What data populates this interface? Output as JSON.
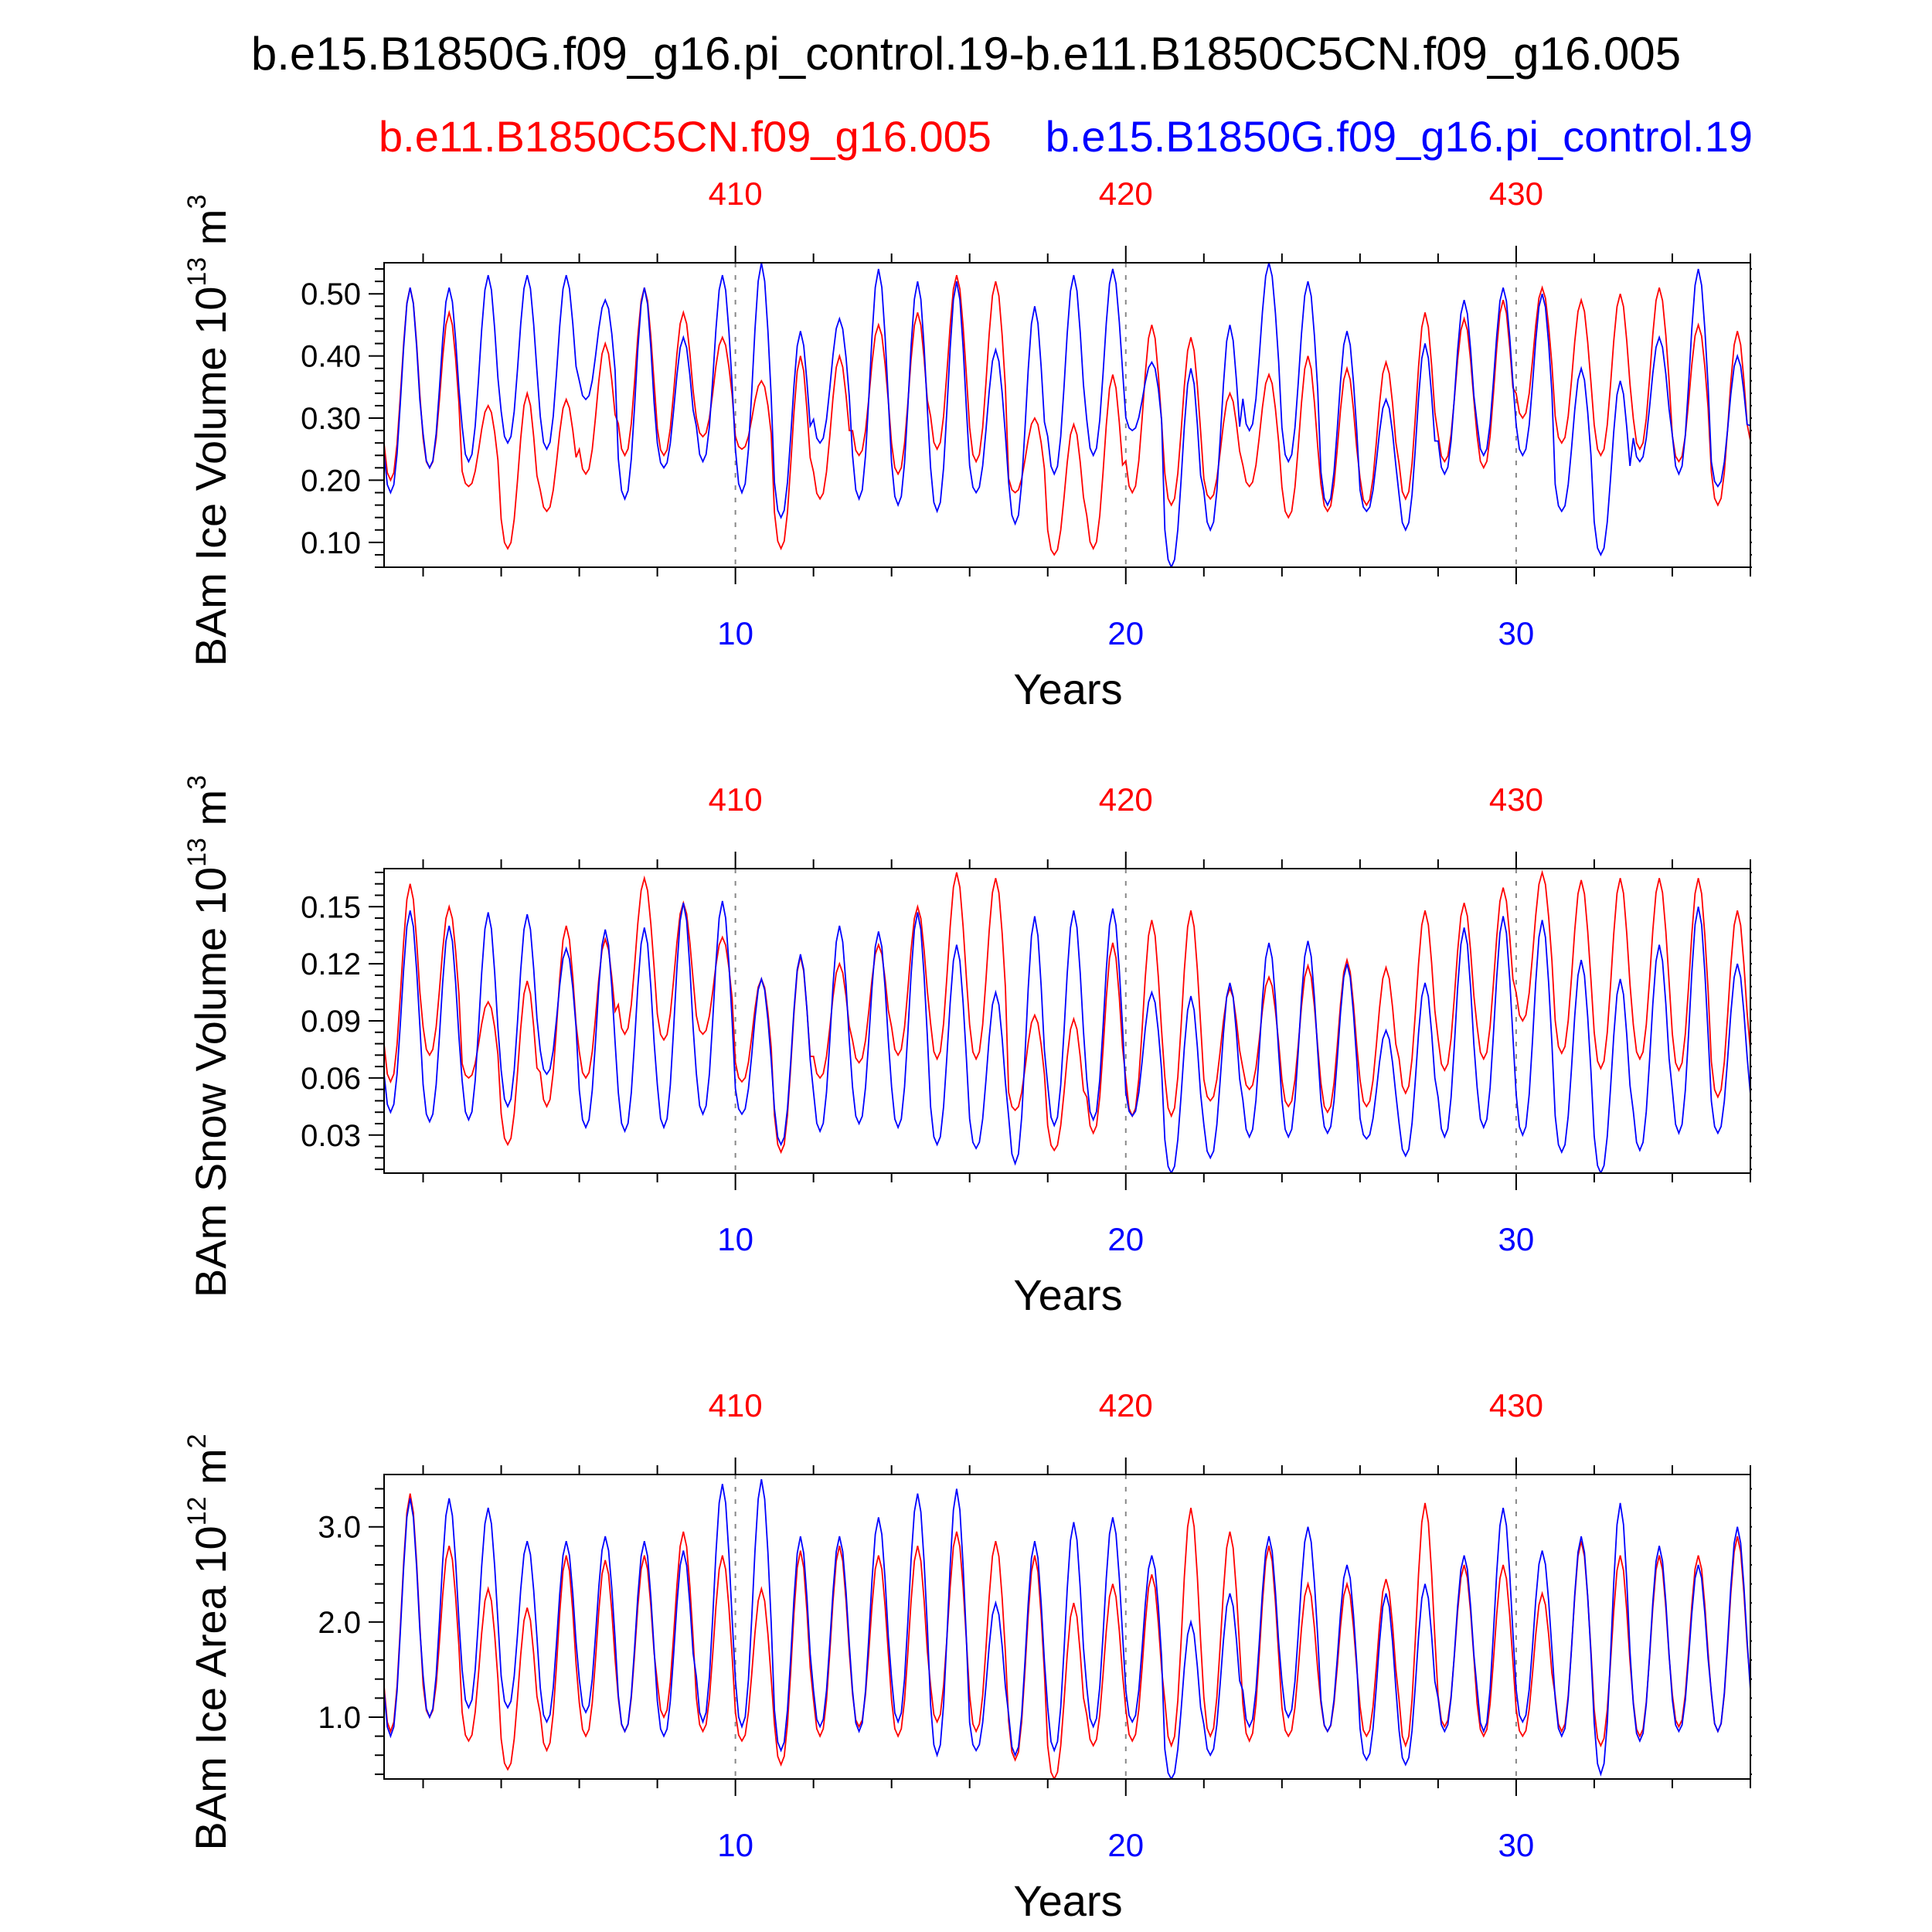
{
  "figure": {
    "title": "b.e15.B1850G.f09_g16.pi_control.19-b.e11.B1850C5CN.f09_g16.005",
    "legend": {
      "red_label": "b.e11.B1850C5CN.f09_g16.005",
      "blue_label": "b.e15.B1850G.f09_g16.pi_control.19"
    },
    "colors": {
      "series_a": "#ff0000",
      "series_b": "#0000ff",
      "frame": "#000000"
    }
  },
  "chart_data": [
    {
      "type": "line",
      "ylabel": "BAm Ice Volume 10^13 m^3",
      "ylabel_base": "BAm Ice Volume 10",
      "ylabel_exp": "13",
      "ylabel_unit": "m",
      "ylabel_unit_exp": "3",
      "xlabel": "Years",
      "xlim": [
        1,
        36
      ],
      "ylim": [
        0.06,
        0.55
      ],
      "yticks": [
        0.1,
        0.2,
        0.3,
        0.4,
        0.5
      ],
      "yticklabels": [
        "0.10",
        "0.20",
        "0.30",
        "0.40",
        "0.50"
      ],
      "bottom_xticks": [
        10,
        20,
        30
      ],
      "bottom_xticklabels": [
        "10",
        "20",
        "30"
      ],
      "top_xticklabels": [
        "410",
        "420",
        "430"
      ],
      "series": [
        {
          "name": "b.e11.B1850C5CN.f09_g16.005",
          "color": "#ff0000",
          "annual_max": [
            0.51,
            0.47,
            0.32,
            0.34,
            0.33,
            0.42,
            0.51,
            0.47,
            0.43,
            0.36,
            0.4,
            0.4,
            0.45,
            0.47,
            0.53,
            0.52,
            0.3,
            0.29,
            0.37,
            0.45,
            0.43,
            0.34,
            0.37,
            0.4,
            0.38,
            0.39,
            0.47,
            0.46,
            0.49,
            0.51,
            0.49,
            0.5,
            0.51,
            0.45,
            0.44,
            0.45
          ],
          "annual_min": [
            0.2,
            0.22,
            0.19,
            0.09,
            0.15,
            0.21,
            0.24,
            0.24,
            0.27,
            0.25,
            0.09,
            0.17,
            0.24,
            0.21,
            0.25,
            0.23,
            0.18,
            0.08,
            0.09,
            0.18,
            0.16,
            0.17,
            0.19,
            0.14,
            0.15,
            0.16,
            0.17,
            0.23,
            0.22,
            0.3,
            0.26,
            0.24,
            0.25,
            0.23,
            0.16,
            0.22
          ]
        },
        {
          "name": "b.e15.B1850G.f09_g16.pi_control.19",
          "color": "#0000ff",
          "annual_max": [
            0.51,
            0.51,
            0.53,
            0.53,
            0.53,
            0.49,
            0.51,
            0.43,
            0.53,
            0.55,
            0.44,
            0.46,
            0.54,
            0.52,
            0.52,
            0.41,
            0.48,
            0.53,
            0.54,
            0.39,
            0.38,
            0.45,
            0.55,
            0.52,
            0.44,
            0.33,
            0.42,
            0.49,
            0.51,
            0.5,
            0.38,
            0.36,
            0.43,
            0.54,
            0.4,
            0.45
          ],
          "annual_min": [
            0.18,
            0.22,
            0.23,
            0.26,
            0.25,
            0.33,
            0.17,
            0.22,
            0.23,
            0.18,
            0.14,
            0.26,
            0.17,
            0.16,
            0.15,
            0.18,
            0.13,
            0.21,
            0.24,
            0.28,
            0.06,
            0.12,
            0.28,
            0.23,
            0.16,
            0.15,
            0.12,
            0.21,
            0.24,
            0.24,
            0.15,
            0.08,
            0.23,
            0.21,
            0.19,
            0.25
          ]
        }
      ]
    },
    {
      "type": "line",
      "ylabel": "BAm Snow Volume 10^13 m^3",
      "ylabel_base": "BAm Snow Volume 10",
      "ylabel_exp": "13",
      "ylabel_unit": "m",
      "ylabel_unit_exp": "3",
      "xlabel": "Years",
      "xlim": [
        1,
        36
      ],
      "ylim": [
        0.01,
        0.17
      ],
      "yticks": [
        0.03,
        0.06,
        0.09,
        0.12,
        0.15
      ],
      "yticklabels": [
        "0.03",
        "0.06",
        "0.09",
        "0.12",
        "0.15"
      ],
      "bottom_xticks": [
        10,
        20,
        30
      ],
      "bottom_xticklabels": [
        "10",
        "20",
        "30"
      ],
      "top_xticklabels": [
        "410",
        "420",
        "430"
      ],
      "series": [
        {
          "name": "b.e11.B1850C5CN.f09_g16.005",
          "color": "#ff0000",
          "annual_max": [
            0.162,
            0.15,
            0.1,
            0.111,
            0.14,
            0.133,
            0.165,
            0.152,
            0.134,
            0.112,
            0.124,
            0.12,
            0.13,
            0.15,
            0.168,
            0.165,
            0.093,
            0.091,
            0.131,
            0.143,
            0.148,
            0.107,
            0.113,
            0.119,
            0.122,
            0.118,
            0.148,
            0.152,
            0.16,
            0.168,
            0.164,
            0.165,
            0.165,
            0.165,
            0.148,
            0.137
          ],
          "annual_min": [
            0.058,
            0.072,
            0.06,
            0.025,
            0.045,
            0.06,
            0.083,
            0.08,
            0.083,
            0.058,
            0.021,
            0.06,
            0.068,
            0.072,
            0.07,
            0.07,
            0.043,
            0.022,
            0.031,
            0.04,
            0.04,
            0.048,
            0.054,
            0.045,
            0.042,
            0.045,
            0.052,
            0.064,
            0.07,
            0.09,
            0.073,
            0.065,
            0.07,
            0.064,
            0.05,
            0.06
          ]
        },
        {
          "name": "b.e15.B1850G.f09_g16.pi_control.19",
          "color": "#0000ff",
          "annual_max": [
            0.148,
            0.14,
            0.147,
            0.146,
            0.128,
            0.138,
            0.139,
            0.152,
            0.153,
            0.112,
            0.125,
            0.14,
            0.137,
            0.147,
            0.13,
            0.105,
            0.145,
            0.148,
            0.149,
            0.105,
            0.103,
            0.11,
            0.131,
            0.132,
            0.12,
            0.085,
            0.11,
            0.139,
            0.145,
            0.143,
            0.122,
            0.112,
            0.13,
            0.15,
            0.12,
            0.1
          ],
          "annual_min": [
            0.042,
            0.037,
            0.038,
            0.045,
            0.062,
            0.034,
            0.032,
            0.034,
            0.041,
            0.041,
            0.025,
            0.032,
            0.036,
            0.034,
            0.025,
            0.023,
            0.015,
            0.035,
            0.038,
            0.04,
            0.01,
            0.018,
            0.029,
            0.029,
            0.031,
            0.028,
            0.019,
            0.029,
            0.034,
            0.03,
            0.021,
            0.01,
            0.022,
            0.031,
            0.031,
            0.04
          ]
        }
      ]
    },
    {
      "type": "line",
      "ylabel": "BAm Ice Area 10^12 m^2",
      "ylabel_base": "BAm Ice Area 10",
      "ylabel_exp": "12",
      "ylabel_unit": "m",
      "ylabel_unit_exp": "2",
      "xlabel": "Years",
      "xlim": [
        1,
        36
      ],
      "ylim": [
        0.35,
        3.55
      ],
      "yticks": [
        1.0,
        2.0,
        3.0
      ],
      "yticklabels": [
        "1.0",
        "2.0",
        "3.0"
      ],
      "bottom_xticks": [
        10,
        20,
        30
      ],
      "bottom_xticklabels": [
        "10",
        "20",
        "30"
      ],
      "top_xticklabels": [
        "410",
        "420",
        "430"
      ],
      "series": [
        {
          "name": "b.e11.B1850C5CN.f09_g16.005",
          "color": "#ff0000",
          "annual_max": [
            3.35,
            2.8,
            2.35,
            2.15,
            2.7,
            2.65,
            2.7,
            2.95,
            2.7,
            2.35,
            2.75,
            2.8,
            2.7,
            2.8,
            2.95,
            2.85,
            2.7,
            2.2,
            2.4,
            2.5,
            3.2,
            2.95,
            2.8,
            2.4,
            2.4,
            2.45,
            3.25,
            2.6,
            2.6,
            2.3,
            2.85,
            2.7,
            2.7,
            2.7,
            2.9,
            3.1
          ],
          "annual_min": [
            0.85,
            1.0,
            0.75,
            0.45,
            0.65,
            0.8,
            0.85,
            1.0,
            0.85,
            0.75,
            0.5,
            0.8,
            0.9,
            0.8,
            0.95,
            0.85,
            0.55,
            0.35,
            0.7,
            0.75,
            0.7,
            0.8,
            0.75,
            0.8,
            0.85,
            0.8,
            0.7,
            0.9,
            0.8,
            0.8,
            0.85,
            0.7,
            0.8,
            0.9,
            0.85,
            0.95
          ]
        },
        {
          "name": "b.e15.B1850G.f09_g16.pi_control.19",
          "color": "#0000ff",
          "annual_max": [
            3.3,
            3.3,
            3.2,
            2.85,
            2.85,
            2.9,
            2.85,
            2.75,
            3.45,
            3.5,
            2.9,
            2.9,
            3.1,
            3.35,
            3.4,
            2.2,
            2.85,
            3.05,
            3.1,
            2.7,
            2.0,
            2.3,
            2.9,
            3.0,
            2.6,
            2.3,
            2.4,
            2.7,
            3.2,
            2.75,
            2.9,
            3.25,
            2.8,
            2.6,
            3.0,
            2.7
          ],
          "annual_min": [
            0.8,
            1.0,
            1.1,
            1.1,
            0.95,
            1.05,
            0.85,
            0.8,
            0.95,
            0.9,
            0.65,
            0.9,
            0.85,
            0.95,
            0.6,
            0.65,
            0.6,
            0.65,
            0.9,
            0.95,
            0.35,
            0.6,
            0.9,
            1.0,
            0.85,
            0.55,
            0.5,
            0.85,
            0.85,
            0.95,
            0.8,
            0.4,
            0.75,
            0.85,
            0.85,
            0.95
          ]
        }
      ]
    }
  ]
}
